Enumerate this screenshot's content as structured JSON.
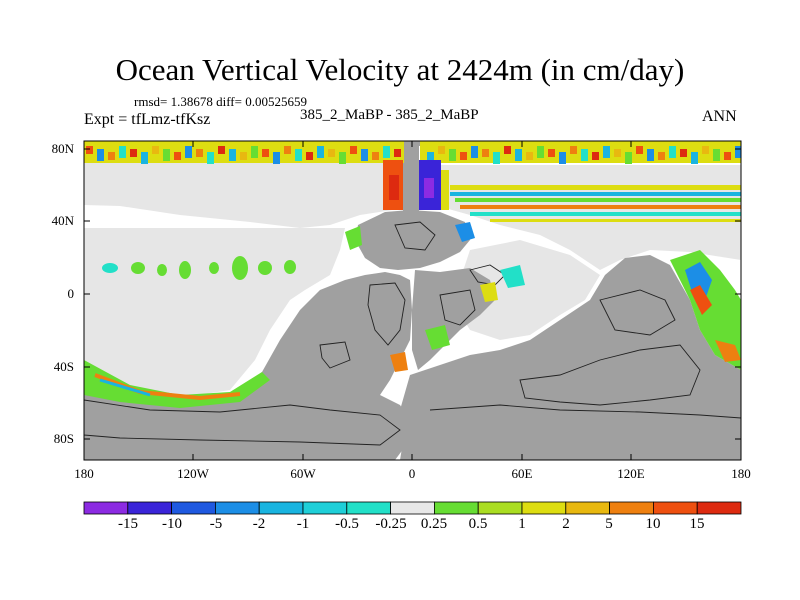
{
  "title": "Ocean Vertical Velocity at 2424m (in cm/day)",
  "stats_line": "rmsd= 1.38678 diff= 0.00525659",
  "experiment": "Expt = tfLmz-tfKsz",
  "subtitle": "385_2_MaBP - 385_2_MaBP",
  "season": "ANN",
  "y_axis_labels": [
    "80N",
    "40N",
    "0",
    "40S",
    "80S"
  ],
  "x_axis_labels": [
    "180",
    "120W",
    "60W",
    "0",
    "60E",
    "120E",
    "180"
  ],
  "colorbar": {
    "labels": [
      "-15",
      "-10",
      "-5",
      "-2",
      "-1",
      "-0.5",
      "-0.25",
      "0.25",
      "0.5",
      "1",
      "2",
      "5",
      "10",
      "15"
    ],
    "colors": [
      "#8c2be2",
      "#3a24d8",
      "#1f59e0",
      "#1c8ee6",
      "#19b4e0",
      "#1fcfd8",
      "#22e0c8",
      "#e8e8e8",
      "#66dd33",
      "#aadd22",
      "#dddd11",
      "#e8b810",
      "#ee8010",
      "#ee5010",
      "#dd2a10"
    ]
  },
  "colors": {
    "land": "#a0a0a0",
    "near_zero": "#e6e6e6"
  }
}
